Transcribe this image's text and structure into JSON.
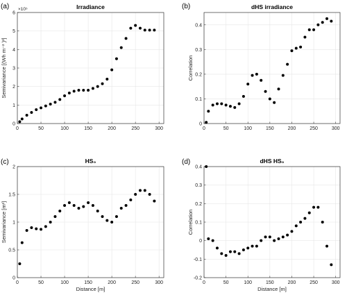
{
  "chart_data": [
    {
      "panel": "(a)",
      "type": "scatter",
      "title": "Irradiance",
      "xlabel": "",
      "ylabel": "Semivariance [(Wh m⁻² )²]",
      "y_exponent": "×10⁵",
      "xlim": [
        0,
        310
      ],
      "ylim": [
        0,
        6
      ],
      "xticks": [
        "0",
        "50",
        "100",
        "150",
        "200",
        "250",
        "300"
      ],
      "yticks": [
        "0",
        "1",
        "2",
        "3",
        "4",
        "5",
        "6"
      ],
      "grid": true,
      "x": [
        5,
        10,
        20,
        30,
        40,
        50,
        60,
        70,
        80,
        90,
        100,
        110,
        120,
        130,
        140,
        150,
        160,
        170,
        180,
        190,
        200,
        210,
        220,
        230,
        240,
        250,
        260,
        270,
        280,
        290
      ],
      "y": [
        0.1,
        0.25,
        0.45,
        0.6,
        0.75,
        0.85,
        0.95,
        1.05,
        1.15,
        1.3,
        1.5,
        1.65,
        1.75,
        1.8,
        1.8,
        1.8,
        1.9,
        2.0,
        2.15,
        2.4,
        2.9,
        3.5,
        4.1,
        4.6,
        5.15,
        5.3,
        5.15,
        5.05,
        5.05,
        5.05
      ]
    },
    {
      "panel": "(b)",
      "type": "scatter",
      "title": "dHS irradiance",
      "xlabel": "",
      "ylabel": "Correlation",
      "xlim": [
        0,
        310
      ],
      "ylim": [
        0,
        0.45
      ],
      "xticks": [
        "0",
        "50",
        "100",
        "150",
        "200",
        "250",
        "300"
      ],
      "yticks": [
        "0",
        "0.1",
        "0.2",
        "0.3",
        "0.4"
      ],
      "grid": true,
      "x": [
        5,
        10,
        20,
        30,
        40,
        50,
        60,
        70,
        80,
        90,
        100,
        110,
        120,
        130,
        140,
        150,
        160,
        170,
        180,
        190,
        200,
        210,
        220,
        230,
        240,
        250,
        260,
        270,
        280,
        290
      ],
      "y": [
        0.005,
        0.05,
        0.075,
        0.08,
        0.08,
        0.075,
        0.07,
        0.065,
        0.08,
        0.11,
        0.16,
        0.195,
        0.2,
        0.175,
        0.13,
        0.1,
        0.085,
        0.14,
        0.195,
        0.24,
        0.295,
        0.305,
        0.31,
        0.35,
        0.38,
        0.38,
        0.4,
        0.41,
        0.425,
        0.415
      ]
    },
    {
      "panel": "(c)",
      "type": "scatter",
      "title": "HS₀",
      "xlabel": "Distance [m]",
      "ylabel": "Semivariance [m²]",
      "xlim": [
        0,
        310
      ],
      "ylim": [
        0,
        2
      ],
      "xticks": [
        "0",
        "50",
        "100",
        "150",
        "200",
        "250",
        "300"
      ],
      "yticks": [
        "0",
        "0.5",
        "1",
        "1.5",
        "2"
      ],
      "grid": true,
      "x": [
        5,
        10,
        20,
        30,
        40,
        50,
        60,
        70,
        80,
        90,
        100,
        110,
        120,
        130,
        140,
        150,
        160,
        170,
        180,
        190,
        200,
        210,
        220,
        230,
        240,
        250,
        260,
        270,
        280,
        290
      ],
      "y": [
        0.25,
        0.63,
        0.85,
        0.9,
        0.88,
        0.87,
        0.92,
        1.0,
        1.1,
        1.2,
        1.3,
        1.35,
        1.3,
        1.25,
        1.28,
        1.35,
        1.3,
        1.2,
        1.1,
        1.03,
        1.0,
        1.1,
        1.25,
        1.3,
        1.4,
        1.5,
        1.57,
        1.57,
        1.5,
        1.38
      ]
    },
    {
      "panel": "(d)",
      "type": "scatter",
      "title": "dHS HS₀",
      "xlabel": "Distance [m]",
      "ylabel": "Correlation",
      "xlim": [
        0,
        310
      ],
      "ylim": [
        -0.2,
        0.4
      ],
      "xticks": [
        "0",
        "50",
        "100",
        "150",
        "200",
        "250",
        "300"
      ],
      "yticks": [
        "-0.2",
        "-0.1",
        "0",
        "0.1",
        "0.2",
        "0.3",
        "0.4"
      ],
      "grid": true,
      "x": [
        5,
        10,
        20,
        30,
        40,
        50,
        60,
        70,
        80,
        90,
        100,
        110,
        120,
        130,
        140,
        150,
        160,
        170,
        180,
        190,
        200,
        210,
        220,
        230,
        240,
        250,
        260,
        270,
        280,
        290
      ],
      "y": [
        0.4,
        0.01,
        0.0,
        -0.04,
        -0.07,
        -0.08,
        -0.06,
        -0.06,
        -0.07,
        -0.05,
        -0.04,
        -0.03,
        -0.03,
        0.0,
        0.02,
        0.02,
        0.0,
        0.01,
        0.02,
        0.03,
        0.05,
        0.08,
        0.1,
        0.12,
        0.15,
        0.18,
        0.18,
        0.1,
        -0.03,
        -0.13
      ]
    }
  ]
}
